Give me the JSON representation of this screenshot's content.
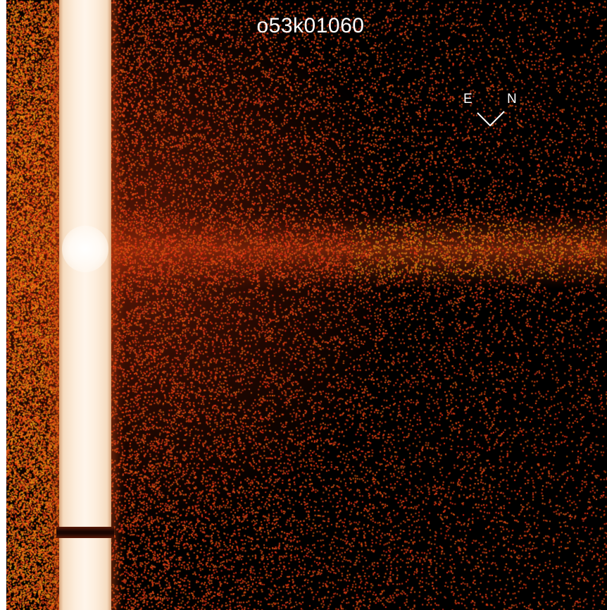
{
  "image": {
    "title": "o53k01060",
    "compass": {
      "east_label": "E",
      "north_label": "N"
    },
    "colors": {
      "background": "#000000",
      "noise": "#d0401a",
      "disk_glow": "#f08a3a",
      "saturated": "#fdeedd",
      "labels": "#ffffff"
    }
  }
}
